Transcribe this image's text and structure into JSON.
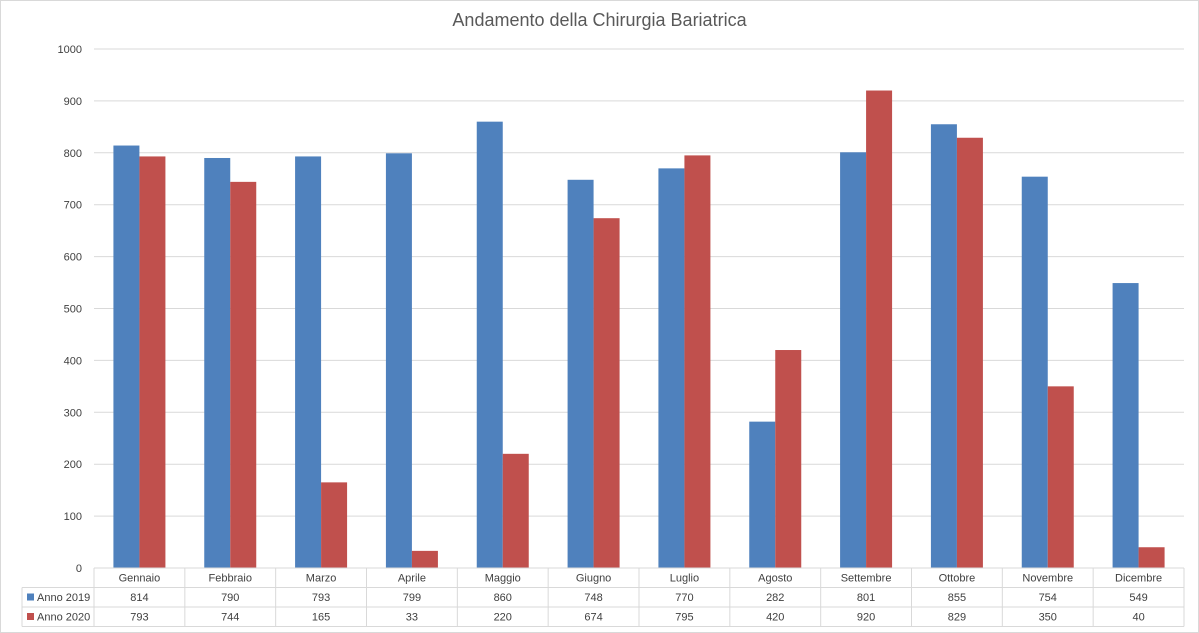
{
  "chart_data": {
    "type": "bar",
    "title": "Andamento della Chirurgia Bariatrica",
    "categories": [
      "Gennaio",
      "Febbraio",
      "Marzo",
      "Aprile",
      "Maggio",
      "Giugno",
      "Luglio",
      "Agosto",
      "Settembre",
      "Ottobre",
      "Novembre",
      "Dicembre"
    ],
    "series": [
      {
        "name": "Anno 2019",
        "color": "#4f81bd",
        "values": [
          814,
          790,
          793,
          799,
          860,
          748,
          770,
          282,
          801,
          855,
          754,
          549
        ]
      },
      {
        "name": "Anno 2020",
        "color": "#c0504d",
        "values": [
          793,
          744,
          165,
          33,
          220,
          674,
          795,
          420,
          920,
          829,
          350,
          40
        ]
      }
    ],
    "yticks": [
      "0",
      "100",
      "200",
      "300",
      "400",
      "500",
      "600",
      "700",
      "800",
      "900",
      "1000"
    ],
    "ylim": [
      0,
      1000
    ],
    "grid": true,
    "legend": "data-table"
  }
}
